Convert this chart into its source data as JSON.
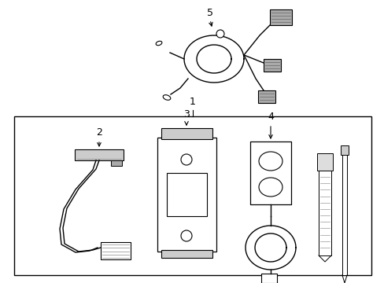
{
  "bg_color": "#ffffff",
  "line_color": "#000000",
  "font_size": 9,
  "label_1": "1",
  "label_2": "2",
  "label_3": "3",
  "label_4": "4",
  "label_5": "5"
}
